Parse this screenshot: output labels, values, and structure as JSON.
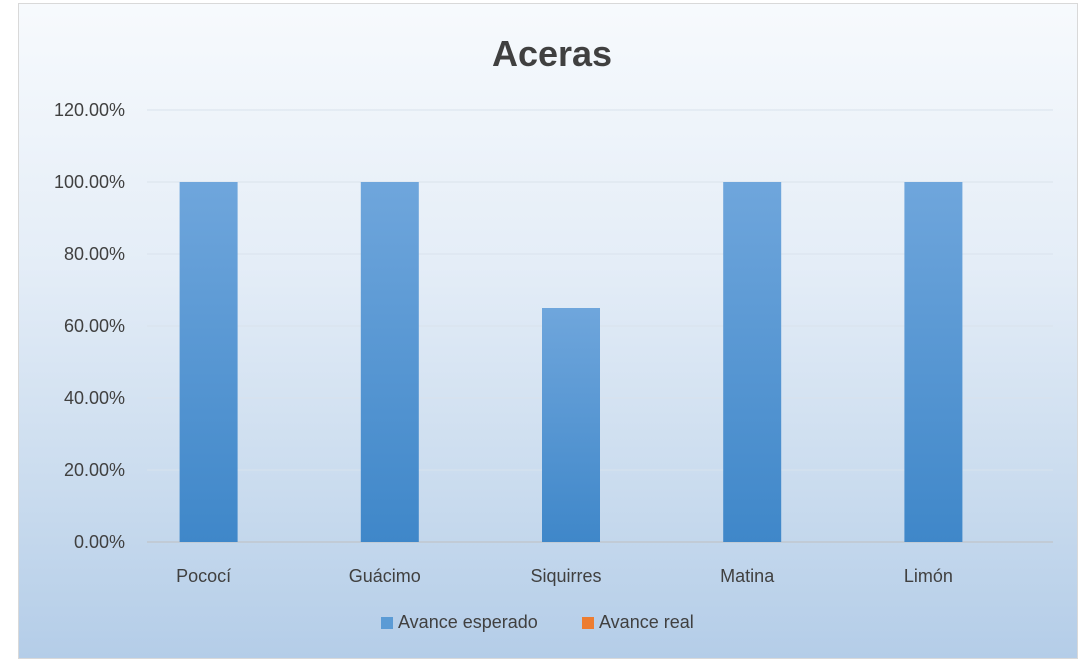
{
  "chart_data": {
    "type": "bar",
    "title": "Aceras",
    "xlabel": "",
    "ylabel": "",
    "categories": [
      "Pococí",
      "Guácimo",
      "Siquirres",
      "Matina",
      "Limón"
    ],
    "series": [
      {
        "name": "Avance esperado",
        "values": [
          1.0,
          1.0,
          0.65,
          1.0,
          1.0
        ],
        "color": "#5b9bd5"
      },
      {
        "name": "Avance real",
        "values": [
          0,
          0,
          0,
          0,
          0
        ],
        "color": "#ed7d31"
      }
    ],
    "ylim": [
      0,
      1.2
    ],
    "yticks": [
      "0.00%",
      "20.00%",
      "40.00%",
      "60.00%",
      "80.00%",
      "100.00%",
      "120.00%"
    ],
    "grid": true,
    "legend_position": "bottom"
  }
}
